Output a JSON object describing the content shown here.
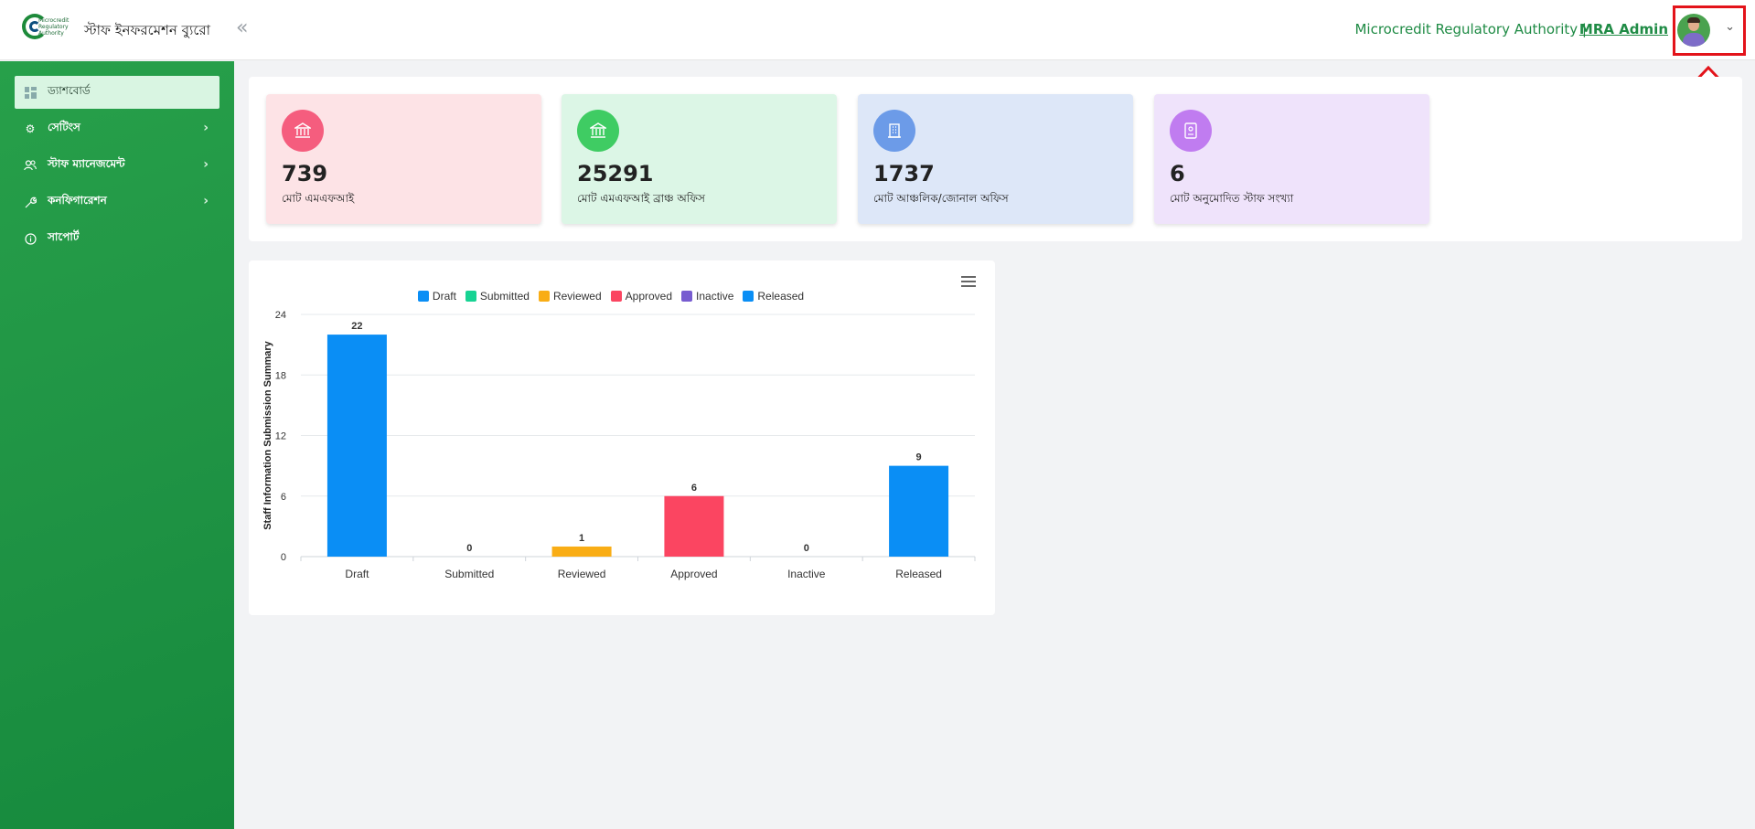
{
  "header": {
    "brand_title": "স্টাফ ইনফরমেশন ব্যুরো",
    "logo_text": "Microcredit Regulatory Authority",
    "collapse_icon": "double-chevron-left-icon",
    "org_name": "Microcredit Regulatory Authority |",
    "user_name": "MRA Admin",
    "highlight_color": "#e3131a"
  },
  "sidebar": {
    "items": [
      {
        "label": "ড্যাশবোর্ড",
        "icon": "dashboard-grid-icon",
        "active": true
      },
      {
        "label": "সেটিংস",
        "icon": "gear-icon",
        "has_children": true
      },
      {
        "label": "স্টাফ ম্যানেজমেন্ট",
        "icon": "users-icon",
        "has_children": true
      },
      {
        "label": "কনফিগারেশন",
        "icon": "wrench-icon",
        "has_children": true
      },
      {
        "label": "সাপোর্ট",
        "icon": "info-icon"
      }
    ]
  },
  "stats": [
    {
      "value": "739",
      "label": "মোট এমএফআই",
      "icon": "bank-icon",
      "bg": "#fde3e6",
      "icon_bg": "#f55d7e"
    },
    {
      "value": "25291",
      "label": "মোট এমএফআই ব্রাঞ্চ অফিস",
      "icon": "bank-icon",
      "bg": "#dcf6e6",
      "icon_bg": "#3fcc63"
    },
    {
      "value": "1737",
      "label": "মোট আঞ্চলিক/জোনাল অফিস",
      "icon": "building-icon",
      "bg": "#dde7f8",
      "icon_bg": "#6c9be8"
    },
    {
      "value": "6",
      "label": "মোট অনুমোদিত স্টাফ সংখ্যা",
      "icon": "id-card-icon",
      "bg": "#efe3fb",
      "icon_bg": "#c07cf0"
    }
  ],
  "chart_data": {
    "type": "bar",
    "title": "",
    "xlabel": "",
    "ylabel": "Staff Information Submission Summary",
    "categories": [
      "Draft",
      "Submitted",
      "Reviewed",
      "Approved",
      "Inactive",
      "Released"
    ],
    "values": [
      22,
      0,
      1,
      6,
      0,
      9
    ],
    "colors": [
      "#0a8ef5",
      "#17d393",
      "#f9ad15",
      "#fb4561",
      "#775cd0",
      "#0a8ef5"
    ],
    "legend": [
      "Draft",
      "Submitted",
      "Reviewed",
      "Approved",
      "Inactive",
      "Released"
    ],
    "legend_position": "top-center",
    "ylim": [
      0,
      24
    ],
    "yticks": [
      0,
      6,
      12,
      18,
      24
    ],
    "grid": true
  }
}
